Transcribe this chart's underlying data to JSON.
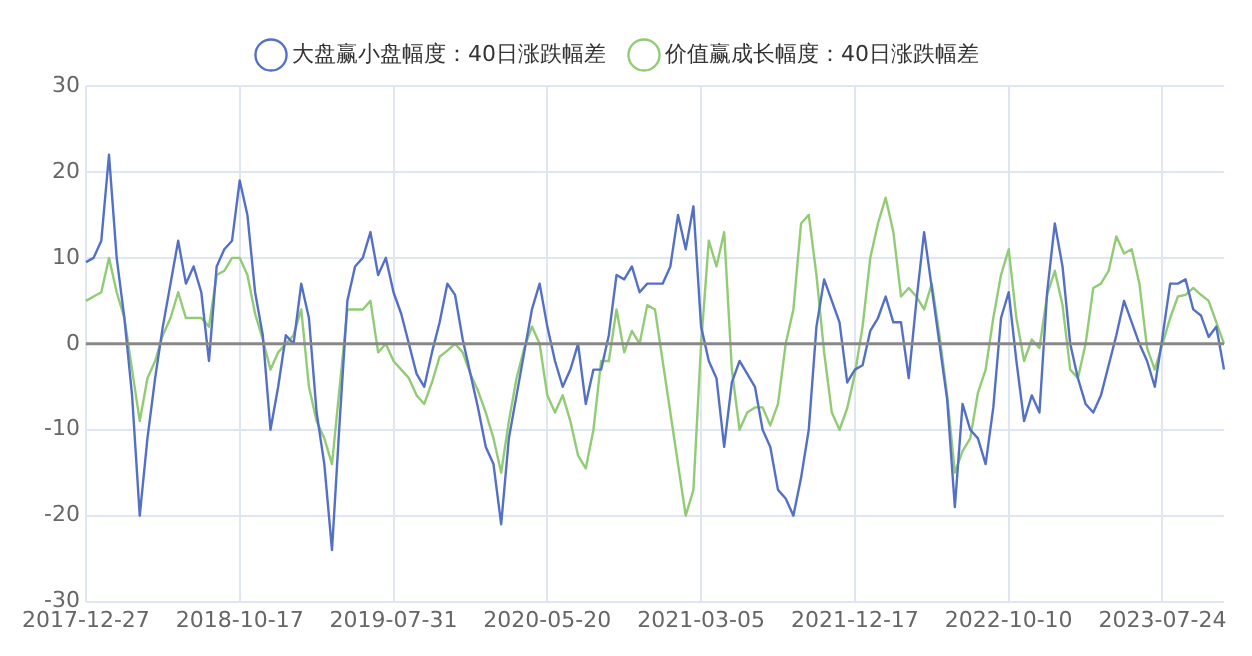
{
  "chart_data": {
    "type": "line",
    "legend": "top",
    "grid": true,
    "categories": [
      "2017-12-27",
      null,
      null,
      null,
      null,
      null,
      null,
      null,
      null,
      null,
      null,
      null,
      null,
      null,
      null,
      null,
      null,
      null,
      null,
      null,
      "2018-10-17",
      null,
      null,
      null,
      null,
      null,
      null,
      null,
      null,
      null,
      null,
      null,
      null,
      null,
      null,
      null,
      null,
      null,
      null,
      null,
      "2019-07-31",
      null,
      null,
      null,
      null,
      null,
      null,
      null,
      null,
      null,
      null,
      null,
      null,
      null,
      null,
      null,
      null,
      null,
      null,
      null,
      "2020-05-20",
      null,
      null,
      null,
      null,
      null,
      null,
      null,
      null,
      null,
      null,
      null,
      null,
      null,
      null,
      null,
      null,
      null,
      null,
      null,
      "2021-03-05",
      null,
      null,
      null,
      null,
      null,
      null,
      null,
      null,
      null,
      null,
      null,
      null,
      null,
      null,
      null,
      null,
      null,
      null,
      null,
      "2021-12-17",
      null,
      null,
      null,
      null,
      null,
      null,
      null,
      null,
      null,
      null,
      null,
      null,
      null,
      null,
      null,
      null,
      null,
      null,
      null,
      "2022-10-10",
      null,
      null,
      null,
      null,
      null,
      null,
      null,
      null,
      null,
      null,
      null,
      null,
      null,
      null,
      null,
      null,
      null,
      null,
      null,
      "2023-07-24",
      null,
      null,
      null,
      null,
      null,
      null,
      null,
      null
    ],
    "ylim": [
      -30,
      30
    ],
    "yticks": [
      -30,
      -20,
      -10,
      0,
      10,
      20,
      30
    ],
    "ref_lines": [
      {
        "axis": "y",
        "value": 0,
        "color": "#888888"
      }
    ],
    "series": [
      {
        "name": "大盘赢小盘幅度：40日涨跌幅差",
        "color": "#5470c6",
        "values": [
          9.5,
          10,
          12,
          22,
          10,
          3,
          -6,
          -20,
          -11,
          -4,
          2,
          7,
          12,
          7,
          9,
          6,
          -2,
          9,
          11,
          12,
          19,
          15,
          6,
          1,
          -10,
          -5,
          1,
          0,
          7,
          3,
          -8,
          -14,
          -24,
          -9,
          5,
          9,
          10,
          13,
          8,
          10,
          6,
          3.5,
          0,
          -3.5,
          -5,
          -1,
          2.5,
          7,
          5.7,
          0.5,
          -3.5,
          -7.5,
          -12,
          -14,
          -21,
          -11,
          -6,
          -1,
          4,
          7,
          2,
          -2,
          -5,
          -3,
          0,
          -7,
          -3,
          -3,
          1,
          8,
          7.5,
          9,
          6,
          7,
          7,
          7,
          9,
          15,
          11,
          16,
          2,
          -2,
          -4,
          -12,
          -4.5,
          -2,
          -3.5,
          -5,
          -10,
          -12,
          -17,
          -18,
          -20,
          -15.6,
          -10,
          2,
          7.5,
          5,
          2.5,
          -4.5,
          -3,
          -2.5,
          1.5,
          3,
          5.5,
          2.5,
          2.5,
          -4,
          5,
          13,
          6.5,
          0,
          -6.5,
          -19,
          -7,
          -10,
          -11,
          -14,
          -7.4,
          3,
          6,
          -2,
          -9,
          -6,
          -8,
          6,
          14,
          9,
          0,
          -4,
          -7,
          -8,
          -6,
          -2.5,
          1,
          5,
          2.5,
          0,
          -2,
          -5,
          0.8,
          7,
          7,
          7.5,
          4,
          3.3,
          0.8,
          2,
          -3
        ]
      },
      {
        "name": "价值赢成长幅度：40日涨跌幅差",
        "color": "#91cc75",
        "values": [
          5,
          5.5,
          6,
          10,
          6,
          3,
          -3,
          -9,
          -4,
          -2,
          1,
          3,
          6,
          3,
          3,
          3,
          2,
          8,
          8.5,
          10,
          10,
          8,
          3.5,
          0.5,
          -3,
          -1,
          0,
          1,
          4,
          -5,
          -9,
          -11,
          -14,
          -5,
          4,
          4,
          4,
          5,
          -1,
          0,
          -2,
          -3,
          -4,
          -6,
          -7,
          -4.5,
          -1.5,
          -0.8,
          0,
          -1,
          -3.5,
          -5.5,
          -8,
          -11,
          -15,
          -9,
          -4,
          -0.5,
          2,
          0,
          -6,
          -8,
          -6,
          -9,
          -13,
          -14.5,
          -10,
          -2,
          -2,
          4,
          -1,
          1.5,
          0,
          4.5,
          4,
          -2,
          -8,
          -14,
          -20,
          -17,
          0,
          12,
          9,
          13,
          -3,
          -10,
          -8,
          -7.4,
          -7.4,
          -9.5,
          -7,
          0,
          4,
          14,
          15,
          8,
          -1,
          -8,
          -10,
          -7.5,
          -3.5,
          2,
          10,
          14,
          17,
          13,
          5.5,
          6.5,
          5.5,
          4,
          7,
          1,
          -6,
          -15,
          -12.5,
          -11,
          -5.7,
          -3,
          3,
          8,
          11,
          3,
          -2,
          0.5,
          -0.5,
          5.7,
          8.5,
          4.5,
          -3,
          -4,
          0,
          6.5,
          7,
          8.5,
          12.5,
          10.5,
          11,
          7,
          -0.5,
          -3,
          0,
          3,
          5.5,
          5.7,
          6.5,
          5.7,
          5,
          2.5,
          0
        ]
      }
    ]
  }
}
